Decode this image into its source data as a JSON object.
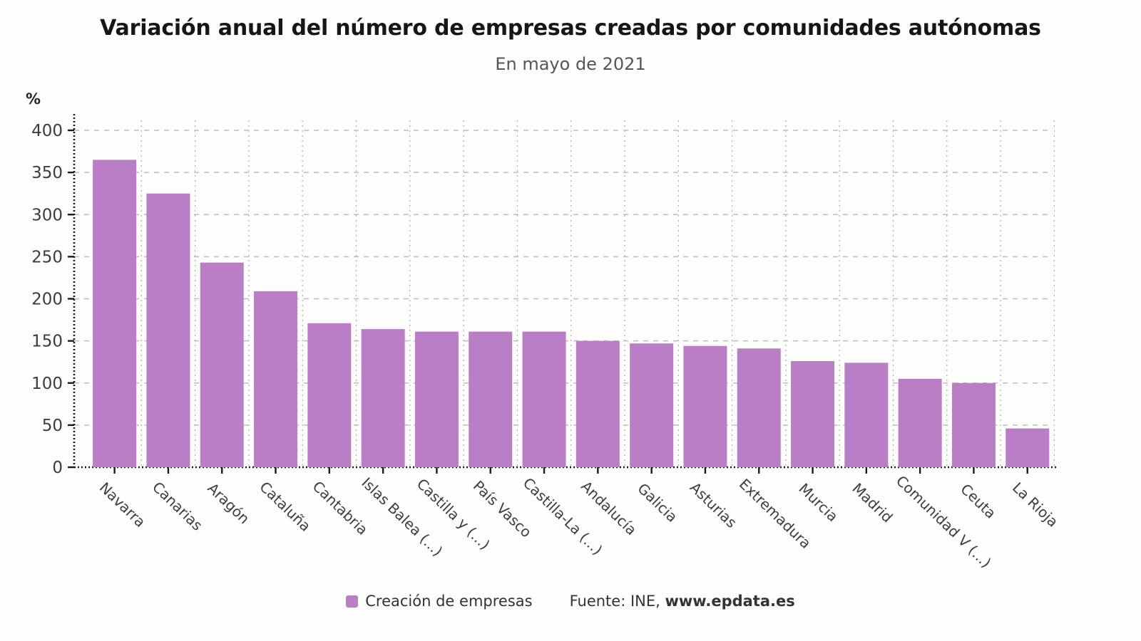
{
  "header": {
    "title": "Variación anual del número de empresas creadas por comunidades autónomas",
    "subtitle": "En mayo de 2021"
  },
  "chart_data": {
    "type": "bar",
    "title": "Variación anual del número de empresas creadas por comunidades autónomas",
    "subtitle": "En mayo de 2021",
    "unit_label": "%",
    "categories": [
      "Navarra",
      "Canarias",
      "Aragón",
      "Cataluña",
      "Cantabria",
      "Islas Balea (...)",
      "Castilla y (...)",
      "País Vasco",
      "Castilla-La (...)",
      "Andalucía",
      "Galicia",
      "Asturias",
      "Extremadura",
      "Murcia",
      "Madrid",
      "Comunidad V (...)",
      "Ceuta",
      "La Rioja"
    ],
    "values": [
      365,
      325,
      243,
      209,
      171,
      164,
      161,
      161,
      161,
      150,
      147,
      144,
      141,
      126,
      124,
      105,
      100,
      46
    ],
    "ylim": [
      0,
      400
    ],
    "yticks": [
      0,
      50,
      100,
      150,
      200,
      250,
      300,
      350,
      400
    ],
    "grid": true,
    "legend_position": "bottom",
    "series_label": "Creación de empresas",
    "bar_color": "#ba7ec6"
  },
  "legend": {
    "series_label": "Creación de empresas",
    "source_prefix": "Fuente: INE, ",
    "source_site": "www.epdata.es"
  },
  "colors": {
    "bar": "#ba7ec6",
    "grid_horizontal": "#bdbdbd",
    "grid_vertical": "#b7abc6",
    "axis": "#1a1a1a",
    "tick_label": "#3d3d3d",
    "title": "#161616",
    "subtitle": "#555555"
  }
}
